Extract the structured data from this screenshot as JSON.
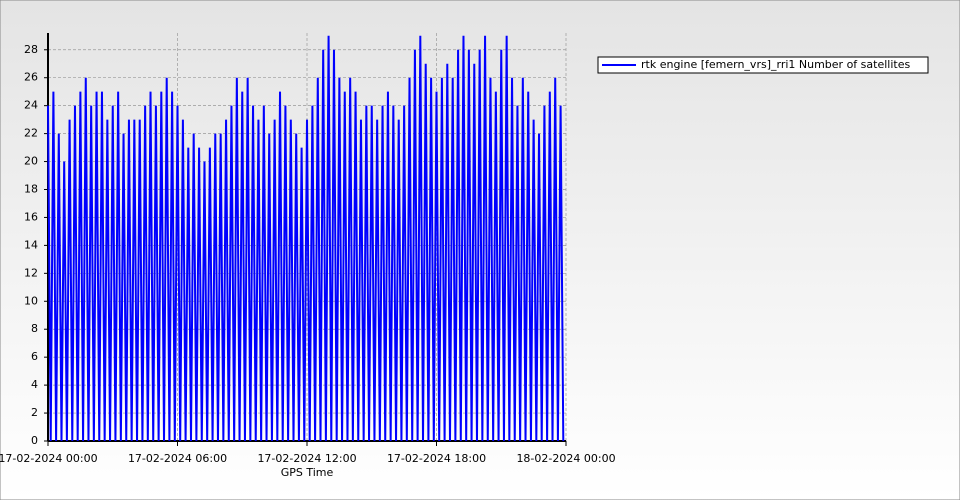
{
  "chart_data": {
    "type": "line",
    "x_label": "GPS Time",
    "x": [
      0,
      0.125,
      0.25,
      0.375,
      0.5,
      0.625,
      0.75,
      0.875,
      1,
      1.125,
      1.25,
      1.375,
      1.5,
      1.625,
      1.75,
      1.875,
      2,
      2.125,
      2.25,
      2.375,
      2.5,
      2.625,
      2.75,
      2.875,
      3,
      3.125,
      3.25,
      3.375,
      3.5,
      3.625,
      3.75,
      3.875,
      4,
      4.125,
      4.25,
      4.375,
      4.5,
      4.625,
      4.75,
      4.875,
      5,
      5.125,
      5.25,
      5.375,
      5.5,
      5.625,
      5.75,
      5.875,
      6,
      6.125,
      6.25,
      6.375,
      6.5,
      6.625,
      6.75,
      6.875,
      7,
      7.125,
      7.25,
      7.375,
      7.5,
      7.625,
      7.75,
      7.875,
      8,
      8.125,
      8.25,
      8.375,
      8.5,
      8.625,
      8.75,
      8.875,
      9,
      9.125,
      9.25,
      9.375,
      9.5,
      9.625,
      9.75,
      9.875,
      10,
      10.125,
      10.25,
      10.375,
      10.5,
      10.625,
      10.75,
      10.875,
      11,
      11.125,
      11.25,
      11.375,
      11.5,
      11.625,
      11.75,
      11.875,
      12,
      12.125,
      12.25,
      12.375,
      12.5,
      12.625,
      12.75,
      12.875,
      13,
      13.125,
      13.25,
      13.375,
      13.5,
      13.625,
      13.75,
      13.875,
      14,
      14.125,
      14.25,
      14.375,
      14.5,
      14.625,
      14.75,
      14.875,
      15,
      15.125,
      15.25,
      15.375,
      15.5,
      15.625,
      15.75,
      15.875,
      16,
      16.125,
      16.25,
      16.375,
      16.5,
      16.625,
      16.75,
      16.875,
      17,
      17.125,
      17.25,
      17.375,
      17.5,
      17.625,
      17.75,
      17.875,
      18,
      18.125,
      18.25,
      18.375,
      18.5,
      18.625,
      18.75,
      18.875,
      19,
      19.125,
      19.25,
      19.375,
      19.5,
      19.625,
      19.75,
      19.875,
      20,
      20.125,
      20.25,
      20.375,
      20.5,
      20.625,
      20.75,
      20.875,
      21,
      21.125,
      21.25,
      21.375,
      21.5,
      21.625,
      21.75,
      21.875,
      22,
      22.125,
      22.25,
      22.375,
      22.5,
      22.625,
      22.75,
      22.875,
      23,
      23.125,
      23.25,
      23.375,
      23.5,
      23.625,
      23.75,
      23.875
    ],
    "series": [
      {
        "name": "rtk engine [femern_vrs]_rri1 Number of satellites",
        "color": "#0000ff",
        "values": [
          24,
          0,
          25,
          0,
          22,
          0,
          20,
          0,
          23,
          0,
          24,
          0,
          25,
          0,
          26,
          0,
          24,
          0,
          25,
          0,
          25,
          0,
          23,
          0,
          24,
          0,
          25,
          0,
          22,
          0,
          23,
          0,
          23,
          0,
          23,
          0,
          24,
          0,
          25,
          0,
          24,
          0,
          25,
          0,
          26,
          0,
          25,
          0,
          24,
          0,
          23,
          0,
          21,
          0,
          22,
          0,
          21,
          0,
          20,
          0,
          21,
          0,
          22,
          0,
          22,
          0,
          23,
          0,
          24,
          0,
          26,
          0,
          25,
          0,
          26,
          0,
          24,
          0,
          23,
          0,
          24,
          0,
          22,
          0,
          23,
          0,
          25,
          0,
          24,
          0,
          23,
          0,
          22,
          0,
          21,
          0,
          23,
          0,
          24,
          0,
          26,
          0,
          28,
          0,
          29,
          0,
          28,
          0,
          26,
          0,
          25,
          0,
          26,
          0,
          25,
          0,
          23,
          0,
          24,
          0,
          24,
          0,
          23,
          0,
          24,
          0,
          25,
          0,
          24,
          0,
          23,
          0,
          24,
          0,
          26,
          0,
          28,
          0,
          29,
          0,
          27,
          0,
          26,
          0,
          25,
          0,
          26,
          0,
          27,
          0,
          26,
          0,
          28,
          0,
          29,
          0,
          28,
          0,
          27,
          0,
          28,
          0,
          29,
          0,
          26,
          0,
          25,
          0,
          28,
          0,
          29,
          0,
          26,
          0,
          24,
          0,
          26,
          0,
          25,
          0,
          23,
          0,
          22,
          0,
          24,
          0,
          25,
          0,
          26,
          0,
          24,
          0
        ]
      }
    ],
    "xlim": [
      0,
      24
    ],
    "xticks": [
      {
        "value": 0,
        "label": "17-02-2024 00:00"
      },
      {
        "value": 6,
        "label": "17-02-2024 06:00"
      },
      {
        "value": 12,
        "label": "17-02-2024 12:00"
      },
      {
        "value": 18,
        "label": "17-02-2024 18:00"
      },
      {
        "value": 24,
        "label": "18-02-2024 00:00"
      }
    ],
    "ylim": [
      0,
      29.2
    ],
    "yticks": [
      0,
      2,
      4,
      6,
      8,
      10,
      12,
      14,
      16,
      18,
      20,
      22,
      24,
      26,
      28
    ],
    "grid": true
  }
}
